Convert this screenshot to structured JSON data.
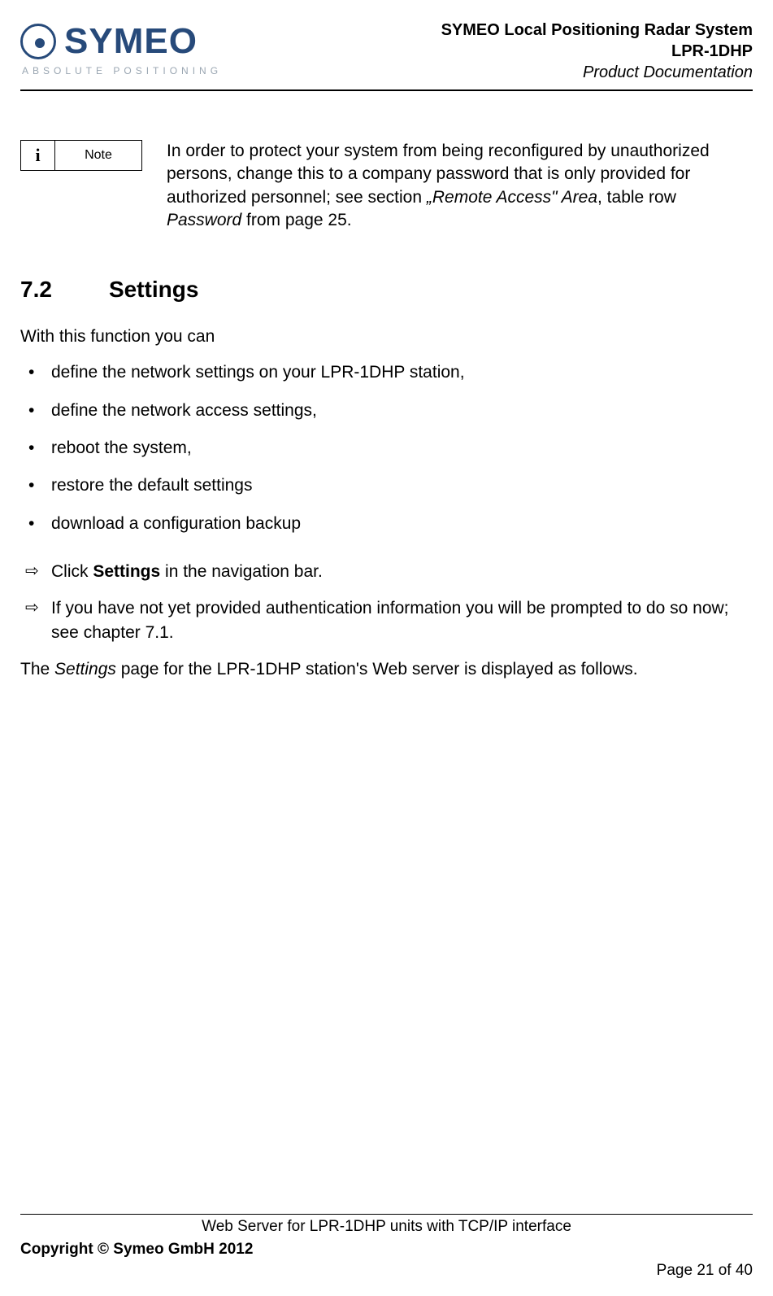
{
  "header": {
    "logo_word": "SYMEO",
    "logo_sub": "ABSOLUTE POSITIONING",
    "line1": "SYMEO Local Positioning Radar System",
    "line2": "LPR-1DHP",
    "line3": "Product Documentation"
  },
  "note": {
    "icon": "i",
    "label": "Note",
    "text_pre": "In order to protect your system from being reconfigured by unauthorized persons, change this to a company password that is only provided for authorized personnel; see section ",
    "text_ital1": "„Remote Access\" Area",
    "text_mid": ", table row ",
    "text_ital2": "Password",
    "text_post": " from page 25."
  },
  "section": {
    "num": "7.2",
    "title": "Settings"
  },
  "intro": "With this function you can",
  "bullets": [
    "define the network settings on your LPR-1DHP station,",
    "define the network access settings,",
    "reboot the system,",
    "restore the default settings",
    "download a configuration backup"
  ],
  "arrows": {
    "a1_pre": "Click ",
    "a1_bold": "Settings",
    "a1_post": " in the navigation bar.",
    "a2": "If you have not yet provided authentication information you will be prompted to do so now; see chapter 7.1."
  },
  "closing": {
    "pre": "The ",
    "ital": "Settings",
    "post": " page for the LPR-1DHP station's Web server is displayed as follows."
  },
  "footer": {
    "center": "Web Server for LPR-1DHP units with TCP/IP interface",
    "copyright": "Copyright © Symeo GmbH 2012",
    "page": "Page 21 of 40"
  }
}
